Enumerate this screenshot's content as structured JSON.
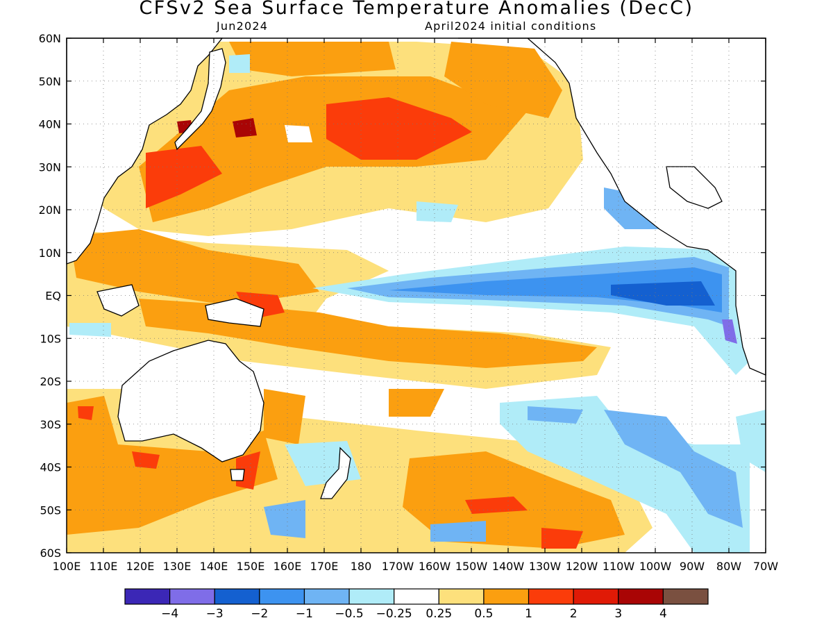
{
  "title": "CFSv2 Sea Surface Temperature Anomalies (DecC)",
  "subtitle_left": "Jun2024",
  "subtitle_right": "April2024 initial conditions",
  "lat_labels": [
    "60N",
    "50N",
    "40N",
    "30N",
    "20N",
    "10N",
    "EQ",
    "10S",
    "20S",
    "30S",
    "40S",
    "50S",
    "60S"
  ],
  "lon_labels": [
    "100E",
    "110E",
    "120E",
    "130E",
    "140E",
    "150E",
    "160E",
    "170E",
    "180",
    "170W",
    "160W",
    "150W",
    "140W",
    "130W",
    "120W",
    "110W",
    "100W",
    "90W",
    "80W",
    "70W"
  ],
  "colorbar": {
    "colors": [
      "#3b27b6",
      "#7f6de8",
      "#1460d0",
      "#3d93f0",
      "#6fb4f4",
      "#b0ecf8",
      "#ffffff",
      "#fde07c",
      "#fb9f10",
      "#fb3c0a",
      "#e01a06",
      "#a90505",
      "#7a5040"
    ],
    "labels": [
      "−4",
      "−3",
      "−2",
      "−1",
      "−0.5",
      "−0.25",
      "0.25",
      "0.5",
      "1",
      "2",
      "3",
      "4"
    ]
  }
}
